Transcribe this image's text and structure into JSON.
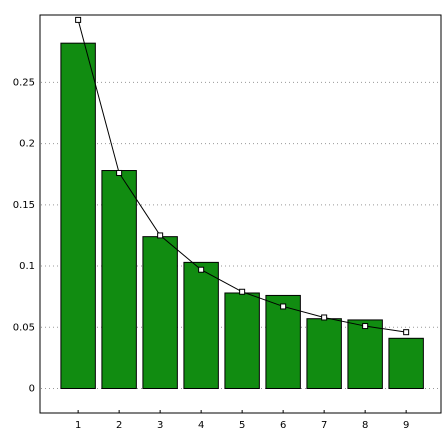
{
  "chart_data": {
    "type": "bar",
    "x": [
      1,
      2,
      3,
      4,
      5,
      6,
      7,
      8,
      9
    ],
    "series": [
      {
        "type": "bar",
        "color": "#118c11",
        "values": [
          0.282,
          0.178,
          0.124,
          0.103,
          0.078,
          0.076,
          0.057,
          0.056,
          0.041
        ]
      },
      {
        "type": "line",
        "color": "#000000",
        "values": [
          0.301,
          0.176,
          0.125,
          0.097,
          0.079,
          0.067,
          0.058,
          0.051,
          0.046
        ]
      }
    ],
    "xlim": [
      0.07,
      9.85
    ],
    "ylim": [
      -0.02,
      0.305
    ],
    "xticks": [
      1,
      2,
      3,
      4,
      5,
      6,
      7,
      8,
      9
    ],
    "yticks": [
      0,
      0.05,
      0.1,
      0.15,
      0.2,
      0.25
    ],
    "grid": true
  }
}
